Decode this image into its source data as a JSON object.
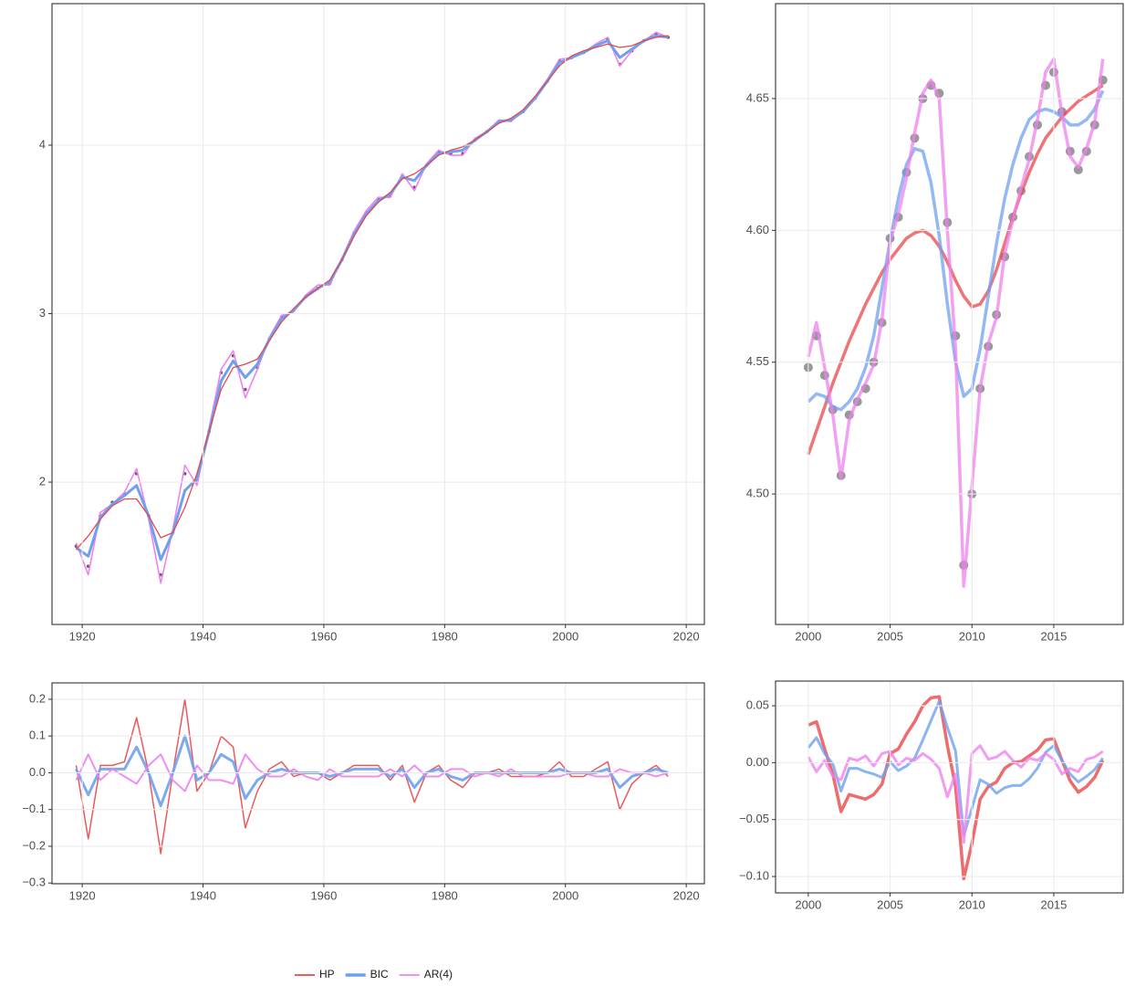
{
  "chart_data": [
    {
      "type": "line",
      "x": [
        1919,
        1921,
        1923,
        1925,
        1927,
        1929,
        1931,
        1933,
        1935,
        1937,
        1939,
        1941,
        1943,
        1945,
        1947,
        1949,
        1951,
        1953,
        1955,
        1957,
        1959,
        1961,
        1963,
        1965,
        1967,
        1969,
        1971,
        1973,
        1975,
        1977,
        1979,
        1981,
        1983,
        1985,
        1987,
        1989,
        1991,
        1993,
        1995,
        1997,
        1999,
        2001,
        2003,
        2005,
        2007,
        2009,
        2011,
        2013,
        2015,
        2017
      ],
      "xlim": [
        1915,
        2023
      ],
      "xticks": [
        1920,
        1940,
        1960,
        1980,
        2000,
        2020
      ],
      "ylim": [
        1.155,
        4.84
      ],
      "yticks": [
        2,
        3,
        4
      ],
      "grid": true,
      "legend_position": "bottom",
      "points": {
        "color": "#5a3a5a",
        "values": [
          1.62,
          1.5,
          1.8,
          1.88,
          1.93,
          2.05,
          1.8,
          1.45,
          1.7,
          2.05,
          2.0,
          2.3,
          2.65,
          2.75,
          2.55,
          2.68,
          2.85,
          2.98,
          3.02,
          3.1,
          3.15,
          3.18,
          3.32,
          3.48,
          3.6,
          3.68,
          3.7,
          3.82,
          3.75,
          3.88,
          3.96,
          3.95,
          3.95,
          4.03,
          4.08,
          4.14,
          4.15,
          4.2,
          4.28,
          4.38,
          4.5,
          4.52,
          4.55,
          4.59,
          4.63,
          4.48,
          4.56,
          4.62,
          4.66,
          4.64
        ]
      },
      "series": [
        {
          "name": "HP",
          "color": "#e8474a",
          "values": [
            1.6,
            1.68,
            1.78,
            1.86,
            1.9,
            1.9,
            1.8,
            1.67,
            1.7,
            1.85,
            2.05,
            2.3,
            2.55,
            2.68,
            2.7,
            2.73,
            2.84,
            2.95,
            3.03,
            3.1,
            3.15,
            3.2,
            3.32,
            3.46,
            3.58,
            3.66,
            3.72,
            3.8,
            3.83,
            3.88,
            3.94,
            3.97,
            3.99,
            4.03,
            4.08,
            4.13,
            4.16,
            4.21,
            4.29,
            4.38,
            4.47,
            4.53,
            4.56,
            4.58,
            4.6,
            4.58,
            4.59,
            4.62,
            4.64,
            4.65
          ]
        },
        {
          "name": "BIC",
          "color": "#6fa0ef",
          "values": [
            1.61,
            1.56,
            1.79,
            1.87,
            1.92,
            1.98,
            1.8,
            1.54,
            1.7,
            1.95,
            2.02,
            2.3,
            2.6,
            2.72,
            2.62,
            2.7,
            2.85,
            2.97,
            3.02,
            3.1,
            3.15,
            3.19,
            3.32,
            3.47,
            3.59,
            3.67,
            3.71,
            3.81,
            3.79,
            3.88,
            3.95,
            3.96,
            3.97,
            4.03,
            4.08,
            4.14,
            4.15,
            4.2,
            4.28,
            4.38,
            4.49,
            4.52,
            4.55,
            4.59,
            4.62,
            4.52,
            4.57,
            4.62,
            4.65,
            4.64
          ]
        },
        {
          "name": "AR(4)",
          "color": "#ee82ee",
          "values": [
            1.64,
            1.45,
            1.82,
            1.87,
            1.94,
            2.08,
            1.78,
            1.4,
            1.72,
            2.1,
            1.98,
            2.32,
            2.67,
            2.78,
            2.5,
            2.67,
            2.86,
            2.99,
            3.01,
            3.11,
            3.17,
            3.17,
            3.33,
            3.49,
            3.61,
            3.69,
            3.69,
            3.83,
            3.73,
            3.89,
            3.97,
            3.94,
            3.94,
            4.04,
            4.08,
            4.15,
            4.14,
            4.21,
            4.29,
            4.39,
            4.51,
            4.52,
            4.55,
            4.6,
            4.64,
            4.47,
            4.56,
            4.62,
            4.67,
            4.64
          ]
        }
      ]
    },
    {
      "type": "line",
      "x": [
        2000,
        2000.5,
        2001,
        2001.5,
        2002,
        2002.5,
        2003,
        2003.5,
        2004,
        2004.5,
        2005,
        2005.5,
        2006,
        2006.5,
        2007,
        2007.5,
        2008,
        2008.5,
        2009,
        2009.5,
        2010,
        2010.5,
        2011,
        2011.5,
        2012,
        2012.5,
        2013,
        2013.5,
        2014,
        2014.5,
        2015,
        2015.5,
        2016,
        2016.5,
        2017,
        2017.5,
        2018
      ],
      "xlim": [
        1998,
        2019.24
      ],
      "xticks": [
        2000,
        2005,
        2010,
        2015
      ],
      "ylim": [
        4.4505,
        4.686
      ],
      "yticks": [
        {
          "value": 4.5,
          "label": "4.50"
        },
        4.55,
        {
          "value": 4.6,
          "label": "4.60"
        },
        4.65
      ],
      "grid": true,
      "points": {
        "color": "#555555",
        "values": [
          4.548,
          4.56,
          4.545,
          4.532,
          4.507,
          4.53,
          4.535,
          4.54,
          4.55,
          4.565,
          4.597,
          4.605,
          4.622,
          4.635,
          4.65,
          4.655,
          4.652,
          4.603,
          4.56,
          4.473,
          4.5,
          4.54,
          4.556,
          4.568,
          4.59,
          4.605,
          4.615,
          4.628,
          4.64,
          4.655,
          4.66,
          4.645,
          4.63,
          4.623,
          4.63,
          4.64,
          4.657
        ]
      },
      "series": [
        {
          "color": "#e8474a",
          "values": [
            4.515,
            4.524,
            4.533,
            4.542,
            4.55,
            4.558,
            4.565,
            4.572,
            4.578,
            4.584,
            4.589,
            4.593,
            4.597,
            4.599,
            4.6,
            4.598,
            4.594,
            4.588,
            4.581,
            4.575,
            4.571,
            4.572,
            4.577,
            4.585,
            4.595,
            4.605,
            4.614,
            4.622,
            4.629,
            4.635,
            4.639,
            4.643,
            4.646,
            4.649,
            4.651,
            4.653,
            4.655
          ]
        },
        {
          "color": "#6fa0ef",
          "values": [
            4.535,
            4.538,
            4.537,
            4.533,
            4.532,
            4.535,
            4.54,
            4.548,
            4.56,
            4.578,
            4.596,
            4.612,
            4.625,
            4.631,
            4.63,
            4.618,
            4.598,
            4.572,
            4.55,
            4.537,
            4.54,
            4.555,
            4.575,
            4.595,
            4.612,
            4.625,
            4.635,
            4.642,
            4.645,
            4.646,
            4.645,
            4.643,
            4.64,
            4.64,
            4.642,
            4.646,
            4.653
          ]
        },
        {
          "color": "#ee82ee",
          "values": [
            4.552,
            4.565,
            4.548,
            4.53,
            4.506,
            4.528,
            4.536,
            4.542,
            4.549,
            4.566,
            4.596,
            4.606,
            4.62,
            4.637,
            4.652,
            4.657,
            4.65,
            4.6,
            4.555,
            4.465,
            4.503,
            4.54,
            4.557,
            4.567,
            4.591,
            4.604,
            4.616,
            4.627,
            4.642,
            4.66,
            4.665,
            4.644,
            4.628,
            4.624,
            4.631,
            4.641,
            4.665
          ]
        }
      ]
    },
    {
      "type": "line",
      "x": [
        1919,
        1921,
        1923,
        1925,
        1927,
        1929,
        1931,
        1933,
        1935,
        1937,
        1939,
        1941,
        1943,
        1945,
        1947,
        1949,
        1951,
        1953,
        1955,
        1957,
        1959,
        1961,
        1963,
        1965,
        1967,
        1969,
        1971,
        1973,
        1975,
        1977,
        1979,
        1981,
        1983,
        1985,
        1987,
        1989,
        1991,
        1993,
        1995,
        1997,
        1999,
        2001,
        2003,
        2005,
        2007,
        2009,
        2011,
        2013,
        2015,
        2017
      ],
      "xlim": [
        1915,
        2023
      ],
      "xticks": [
        1920,
        1940,
        1960,
        1980,
        2000,
        2020
      ],
      "ylim": [
        -0.302,
        0.2446
      ],
      "yticks": [
        0.2,
        0.1,
        {
          "value": 0,
          "label": "0.0"
        },
        {
          "value": -0.1,
          "label": "−0.1"
        },
        {
          "value": -0.2,
          "label": "−0.2"
        },
        {
          "value": -0.3,
          "label": "−0.3"
        }
      ],
      "grid": true,
      "series": [
        {
          "color": "#e8474a",
          "values": [
            0.02,
            -0.18,
            0.02,
            0.02,
            0.03,
            0.15,
            0.0,
            -0.22,
            0.0,
            0.2,
            -0.05,
            0.0,
            0.1,
            0.07,
            -0.15,
            -0.05,
            0.01,
            0.03,
            -0.01,
            0.0,
            0.0,
            -0.02,
            0.0,
            0.02,
            0.02,
            0.02,
            -0.02,
            0.02,
            -0.08,
            0.0,
            0.02,
            -0.02,
            -0.04,
            0.0,
            0.0,
            0.01,
            -0.01,
            -0.01,
            -0.01,
            0.0,
            0.03,
            -0.01,
            -0.01,
            0.01,
            0.03,
            -0.1,
            -0.03,
            0.0,
            0.02,
            -0.01
          ]
        },
        {
          "color": "#6fa0ef",
          "values": [
            0.01,
            -0.06,
            0.01,
            0.01,
            0.01,
            0.07,
            0.0,
            -0.09,
            0.0,
            0.1,
            -0.02,
            0.0,
            0.05,
            0.03,
            -0.07,
            -0.02,
            0.0,
            0.01,
            0.0,
            0.0,
            0.0,
            -0.01,
            0.0,
            0.01,
            0.01,
            0.01,
            -0.01,
            0.01,
            -0.04,
            0.0,
            0.01,
            -0.01,
            -0.02,
            0.0,
            0.0,
            0.0,
            0.0,
            0.0,
            0.0,
            0.0,
            0.01,
            0.0,
            0.0,
            0.0,
            0.01,
            -0.04,
            -0.01,
            0.0,
            0.01,
            0.0
          ]
        },
        {
          "color": "#ee82ee",
          "values": [
            -0.02,
            0.05,
            -0.02,
            0.01,
            -0.01,
            -0.03,
            0.02,
            0.05,
            -0.02,
            -0.05,
            0.02,
            -0.02,
            -0.02,
            -0.03,
            0.05,
            0.01,
            -0.01,
            -0.01,
            0.01,
            -0.01,
            -0.02,
            0.01,
            -0.01,
            -0.01,
            -0.01,
            -0.01,
            0.01,
            -0.01,
            0.02,
            -0.01,
            -0.01,
            0.01,
            0.01,
            -0.01,
            0.0,
            -0.01,
            0.01,
            -0.01,
            -0.01,
            -0.01,
            -0.01,
            0.0,
            0.0,
            -0.01,
            -0.01,
            0.01,
            0.0,
            0.0,
            -0.01,
            0.0
          ]
        }
      ]
    },
    {
      "type": "line",
      "x": [
        2000,
        2000.5,
        2001,
        2001.5,
        2002,
        2002.5,
        2003,
        2003.5,
        2004,
        2004.5,
        2005,
        2005.5,
        2006,
        2006.5,
        2007,
        2007.5,
        2008,
        2008.5,
        2009,
        2009.5,
        2010,
        2010.5,
        2011,
        2011.5,
        2012,
        2012.5,
        2013,
        2013.5,
        2014,
        2014.5,
        2015,
        2015.5,
        2016,
        2016.5,
        2017,
        2017.5,
        2018
      ],
      "xlim": [
        1998,
        2019.24
      ],
      "xticks": [
        2000,
        2005,
        2010,
        2015
      ],
      "ylim": [
        -0.1144,
        0.0717
      ],
      "yticks": [
        0.05,
        {
          "value": 0,
          "label": "0.00"
        },
        {
          "value": -0.05,
          "label": "−0.05"
        },
        {
          "value": -0.1,
          "label": "−0.10"
        }
      ],
      "grid": true,
      "series": [
        {
          "color": "#e8474a",
          "values": [
            0.033,
            0.036,
            0.012,
            -0.01,
            -0.043,
            -0.028,
            -0.03,
            -0.032,
            -0.028,
            -0.019,
            0.008,
            0.012,
            0.025,
            0.036,
            0.05,
            0.057,
            0.058,
            0.015,
            -0.021,
            -0.102,
            -0.071,
            -0.032,
            -0.021,
            -0.017,
            -0.005,
            0.0,
            0.001,
            0.006,
            0.011,
            0.02,
            0.021,
            0.002,
            -0.016,
            -0.026,
            -0.021,
            -0.013,
            0.002
          ]
        },
        {
          "color": "#6fa0ef",
          "values": [
            0.013,
            0.022,
            0.008,
            -0.001,
            -0.025,
            -0.005,
            -0.005,
            -0.008,
            -0.01,
            -0.013,
            0.001,
            -0.007,
            -0.003,
            0.004,
            0.02,
            0.037,
            0.054,
            0.031,
            0.01,
            -0.064,
            -0.04,
            -0.015,
            -0.019,
            -0.027,
            -0.022,
            -0.02,
            -0.02,
            -0.014,
            -0.005,
            0.009,
            0.015,
            0.002,
            -0.01,
            -0.017,
            -0.012,
            -0.006,
            0.004
          ]
        },
        {
          "color": "#ee82ee",
          "values": [
            0.005,
            -0.008,
            0.002,
            -0.012,
            -0.015,
            0.004,
            0.002,
            0.006,
            -0.003,
            0.008,
            0.01,
            -0.002,
            0.004,
            0.002,
            0.008,
            0.003,
            -0.005,
            -0.03,
            -0.01,
            -0.07,
            0.008,
            0.015,
            0.003,
            0.005,
            0.01,
            0.002,
            -0.004,
            0.004,
            0.002,
            0.008,
            0.003,
            -0.01,
            -0.005,
            -0.008,
            0.003,
            0.005,
            0.01
          ]
        }
      ]
    }
  ]
}
